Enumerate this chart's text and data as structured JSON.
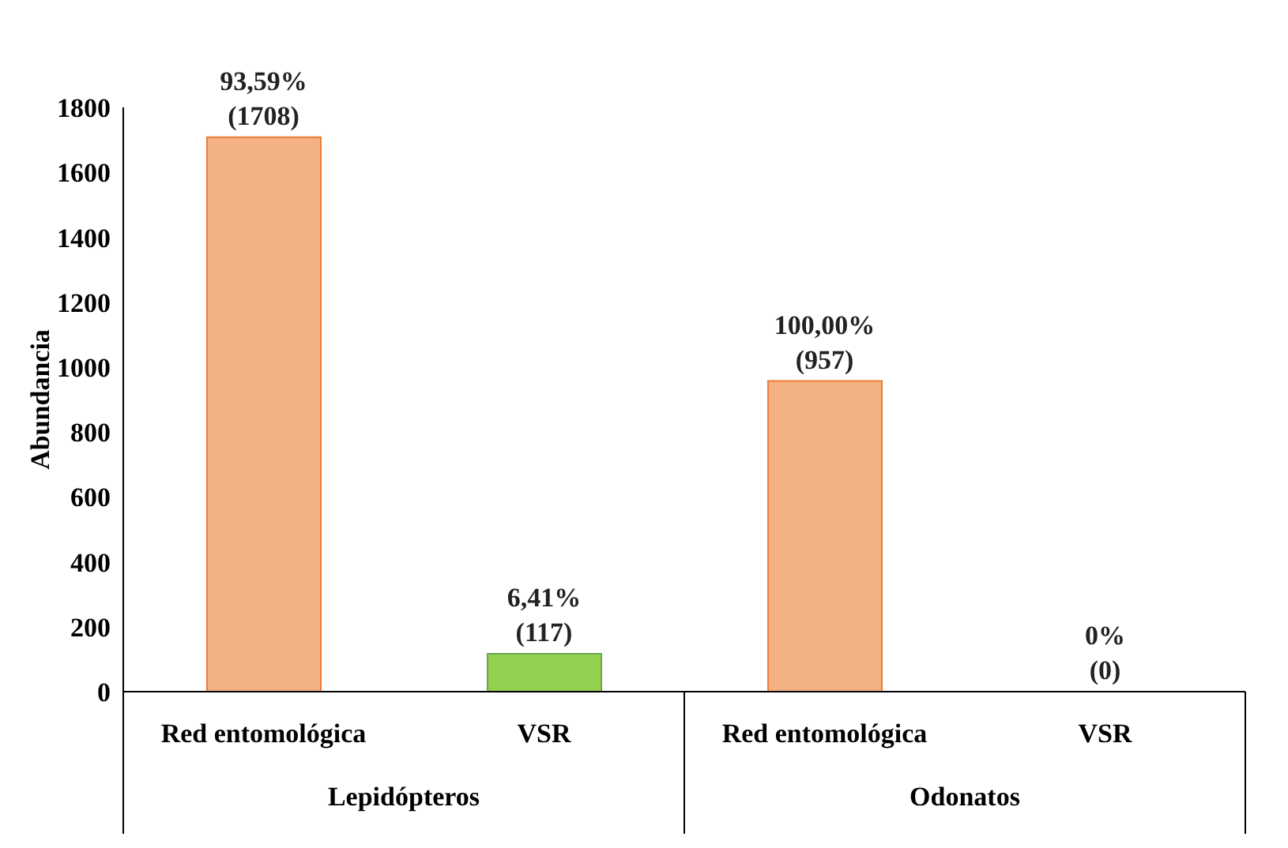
{
  "chart_data": {
    "type": "bar",
    "ylabel": "Abundancia",
    "categories": [
      "Red entomológica",
      "VSR",
      "Red entomológica",
      "VSR"
    ],
    "values": [
      1708,
      117,
      957,
      0
    ],
    "colors": [
      "#f4b183",
      "#92d050",
      "#f4b183",
      "#92d050"
    ],
    "value_labels": [
      "93,59%\n(1708)",
      "6,41%\n(117)",
      "100,00%\n(957)",
      "0%\n(0)"
    ],
    "annotations": [
      "Lepidópteros",
      "Odonatos"
    ],
    "ylim": [
      0,
      1800
    ],
    "yticks": [
      0,
      200,
      400,
      600,
      800,
      1000,
      1200,
      1400,
      1600,
      1800
    ],
    "grid": false
  }
}
